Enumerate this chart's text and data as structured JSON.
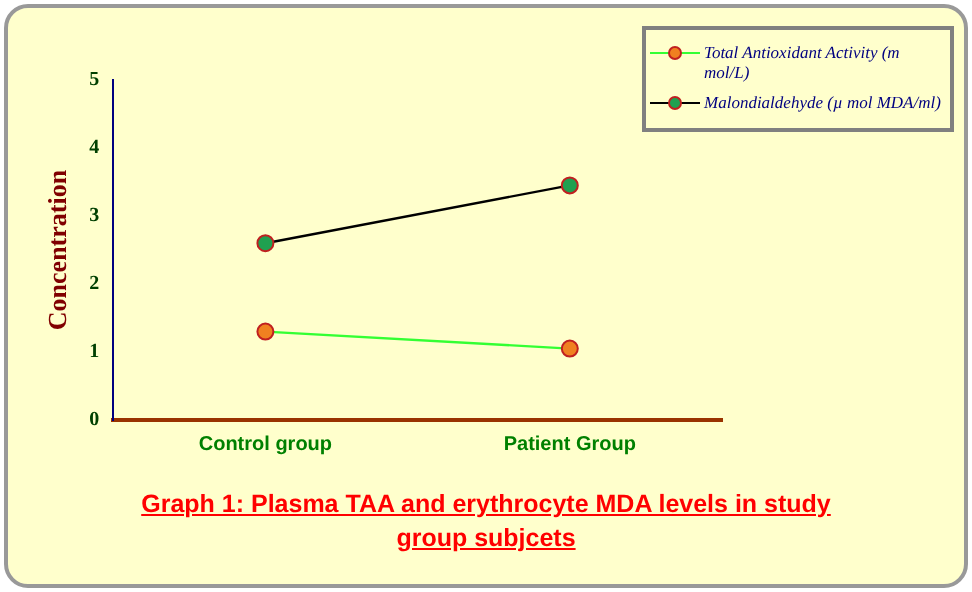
{
  "chart_data": {
    "type": "line",
    "title": "Graph 1:  Plasma TAA and erythrocyte MDA levels in study group subjcets",
    "ylabel": "Concentration",
    "categories": [
      "Control group",
      "Patient Group"
    ],
    "series": [
      {
        "name": "Total Antioxidant Activity (m mol/L)",
        "color": "#33ff33",
        "colors": [
          "#f08020",
          "#f08020"
        ],
        "values": [
          1.3,
          1.05
        ]
      },
      {
        "name": "Malondialdehyde (µ  mol MDA/ml)",
        "color": "#000000",
        "colors": [
          "#20a050",
          "#20a050"
        ],
        "values": [
          2.6,
          3.45
        ]
      }
    ],
    "ylim": [
      0,
      5
    ],
    "yticks": [
      0,
      1,
      2,
      3,
      4,
      5
    ],
    "grid": false,
    "legend": "top right",
    "marker": "circle",
    "line_style": "solid"
  }
}
